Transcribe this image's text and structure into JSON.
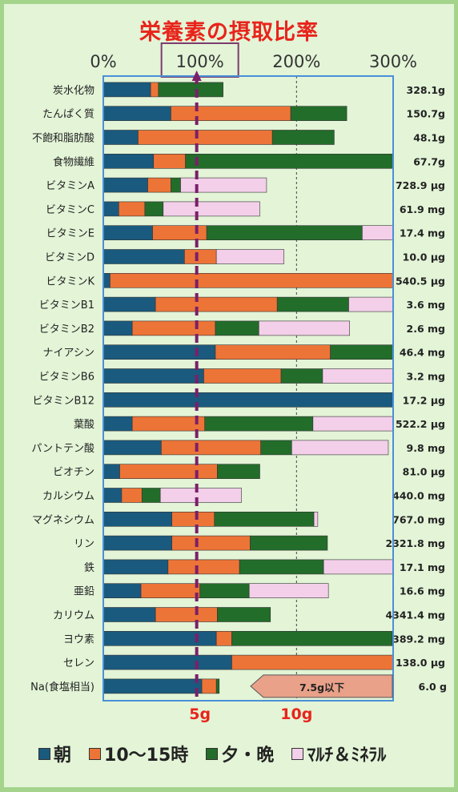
{
  "colors": {
    "morning": "#1a5a7e",
    "noon": "#ed7437",
    "evening": "#226d2a",
    "supplement": "#f3cfe9",
    "dash": "#7b1f69",
    "target_box": "#7b3d6e",
    "plot_border": "#4a90d8",
    "salt_arrow": "#e9a189"
  },
  "chart_data": {
    "type": "bar",
    "orientation": "horizontal",
    "stacked": true,
    "title": "栄養素の摂取比率",
    "x_unit": "%",
    "xlim": [
      0,
      300
    ],
    "x_ticks": [
      0,
      100,
      200,
      300
    ],
    "x_tick_labels": [
      "0%",
      "100%",
      "200%",
      "300%"
    ],
    "highlighted_tick": "100%",
    "reference_line": 100,
    "gridlines": [
      200
    ],
    "series": [
      {
        "name": "朝",
        "color": "#1a5a7e"
      },
      {
        "name": "10～15時",
        "color": "#ed7437"
      },
      {
        "name": "夕・晩",
        "color": "#226d2a"
      },
      {
        "name": "ﾏﾙﾁ＆ﾐﾈﾗﾙ",
        "color": "#f3cfe9"
      }
    ],
    "categories": [
      {
        "name": "炭水化物",
        "values": [
          49,
          8,
          67,
          0
        ],
        "total": "328.1g"
      },
      {
        "name": "たんぱく質",
        "values": [
          70,
          124,
          58,
          0
        ],
        "total": "150.7g"
      },
      {
        "name": "不飽和脂肪酸",
        "values": [
          36,
          139,
          64,
          0
        ],
        "total": "48.1g"
      },
      {
        "name": "食物繊維",
        "values": [
          52,
          33,
          215,
          0
        ],
        "total": "67.7g"
      },
      {
        "name": "ビタミンA",
        "values": [
          46,
          24,
          10,
          89
        ],
        "total": "728.9 μg"
      },
      {
        "name": "ビタミンC",
        "values": [
          16,
          27,
          19,
          100
        ],
        "total": "61.9 mg"
      },
      {
        "name": "ビタミンE",
        "values": [
          51,
          56,
          161,
          32
        ],
        "total": "17.4 mg"
      },
      {
        "name": "ビタミンD",
        "values": [
          84,
          33,
          0,
          70
        ],
        "total": "10.0 μg"
      },
      {
        "name": "ビタミンK",
        "values": [
          7,
          293,
          0,
          0
        ],
        "total": "540.5 μg"
      },
      {
        "name": "ビタミンB1",
        "values": [
          54,
          126,
          74,
          46
        ],
        "total": "3.6 mg"
      },
      {
        "name": "ビタミンB2",
        "values": [
          30,
          86,
          45,
          94
        ],
        "total": "2.6 mg"
      },
      {
        "name": "ナイアシン",
        "values": [
          116,
          119,
          65,
          0
        ],
        "total": "46.4 mg"
      },
      {
        "name": "ビタミンB6",
        "values": [
          104,
          80,
          43,
          73
        ],
        "total": "3.2 mg"
      },
      {
        "name": "ビタミンB12",
        "values": [
          300,
          0,
          0,
          0
        ],
        "total": "17.2 μg"
      },
      {
        "name": "葉酸",
        "values": [
          30,
          75,
          112,
          83
        ],
        "total": "522.2 μg"
      },
      {
        "name": "パントテン酸",
        "values": [
          60,
          103,
          32,
          100
        ],
        "total": "9.8 mg"
      },
      {
        "name": "ビオチン",
        "values": [
          17,
          101,
          44,
          0
        ],
        "total": "81.0 μg"
      },
      {
        "name": "カルシウム",
        "values": [
          19,
          21,
          19,
          84
        ],
        "total": "440.0 mg"
      },
      {
        "name": "マグネシウム",
        "values": [
          71,
          44,
          103,
          4
        ],
        "total": "767.0 mg"
      },
      {
        "name": "リン",
        "values": [
          71,
          81,
          80,
          0
        ],
        "total": "2321.8 mg"
      },
      {
        "name": "鉄",
        "values": [
          67,
          74,
          87,
          72
        ],
        "total": "17.1 mg"
      },
      {
        "name": "亜鉛",
        "values": [
          39,
          61,
          51,
          82
        ],
        "total": "16.6 mg"
      },
      {
        "name": "カリウム",
        "values": [
          54,
          64,
          55,
          0
        ],
        "total": "4341.4 mg"
      },
      {
        "name": "ヨウ素",
        "values": [
          117,
          16,
          166,
          0
        ],
        "total": "389.2 mg"
      },
      {
        "name": "セレン",
        "values": [
          133,
          167,
          0,
          0
        ],
        "total": "138.0 μg"
      },
      {
        "name": "Na(食塩相当)",
        "values": [
          102,
          15,
          3,
          0
        ],
        "total": "6.0 g"
      }
    ],
    "salt_annotation": "7.5g以下",
    "gram_labels": [
      {
        "text": "5g",
        "at": 100
      },
      {
        "text": "10g",
        "at": 200
      }
    ]
  }
}
